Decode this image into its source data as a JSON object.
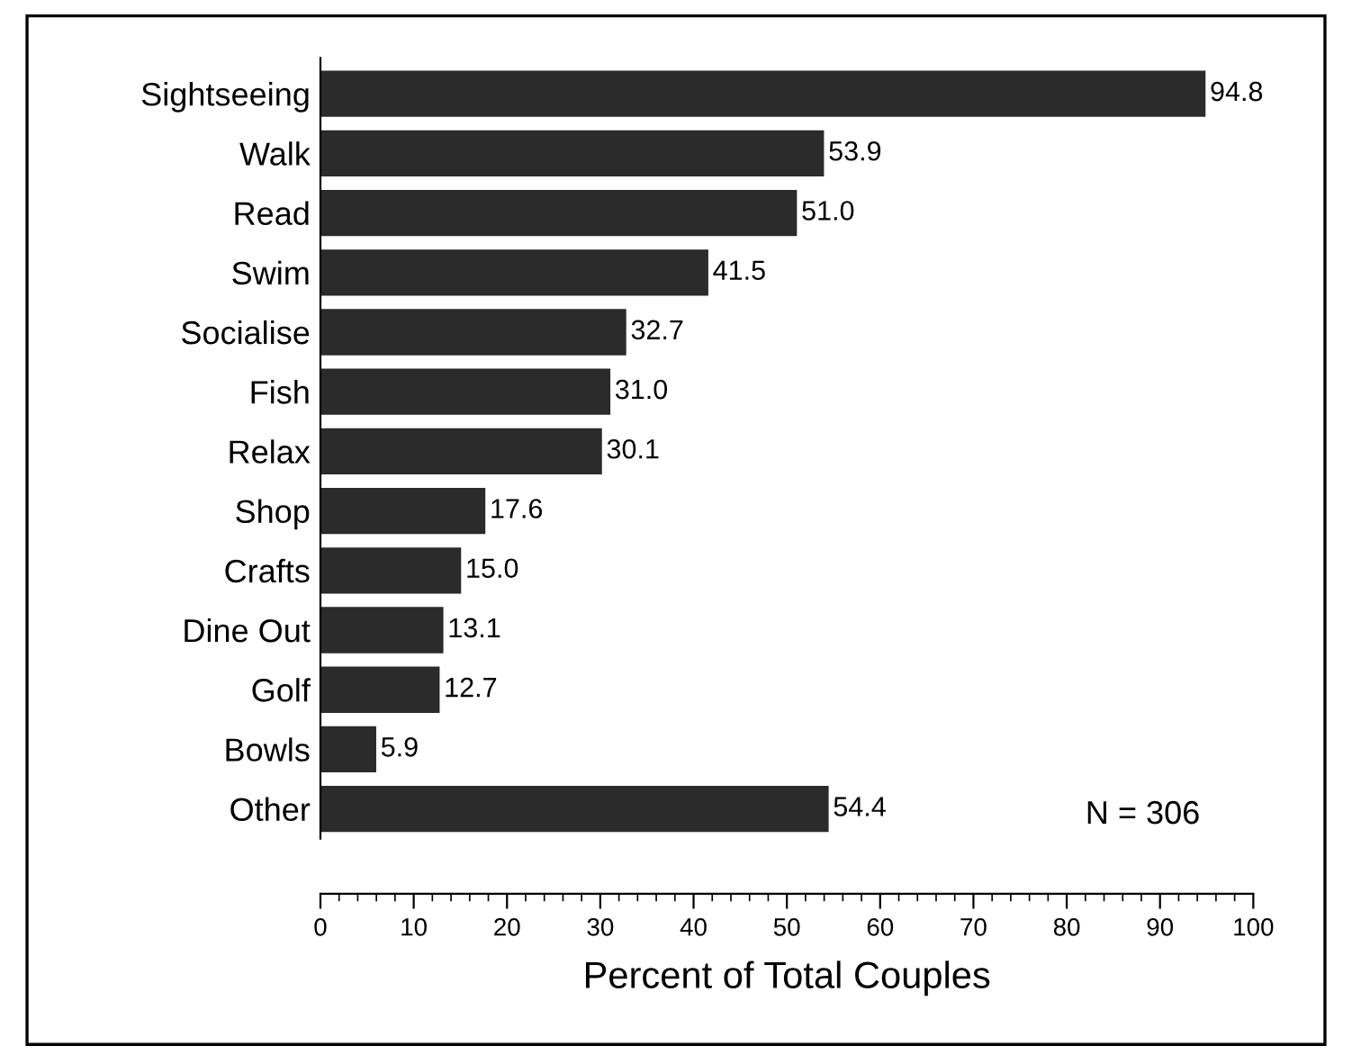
{
  "chart_data": {
    "type": "bar",
    "orientation": "horizontal",
    "categories": [
      "Sightseeing",
      "Walk",
      "Read",
      "Swim",
      "Socialise",
      "Fish",
      "Relax",
      "Shop",
      "Crafts",
      "Dine Out",
      "Golf",
      "Bowls",
      "Other"
    ],
    "values": [
      94.8,
      53.9,
      51.0,
      41.5,
      32.7,
      31.0,
      30.1,
      17.6,
      15.0,
      13.1,
      12.7,
      5.9,
      54.4
    ],
    "value_labels": [
      "94.8",
      "53.9",
      "51.0",
      "41.5",
      "32.7",
      "31.0",
      "30.1",
      "17.6",
      "15.0",
      "13.1",
      "12.7",
      "5.9",
      "54.4"
    ],
    "color": "#2b2b2b",
    "xlabel": "Percent of Total Couples",
    "xlim": [
      0,
      100
    ],
    "xticks": [
      0,
      10,
      20,
      30,
      40,
      50,
      60,
      70,
      80,
      90,
      100
    ],
    "annotations": [
      "N = 306"
    ],
    "grid": false
  }
}
